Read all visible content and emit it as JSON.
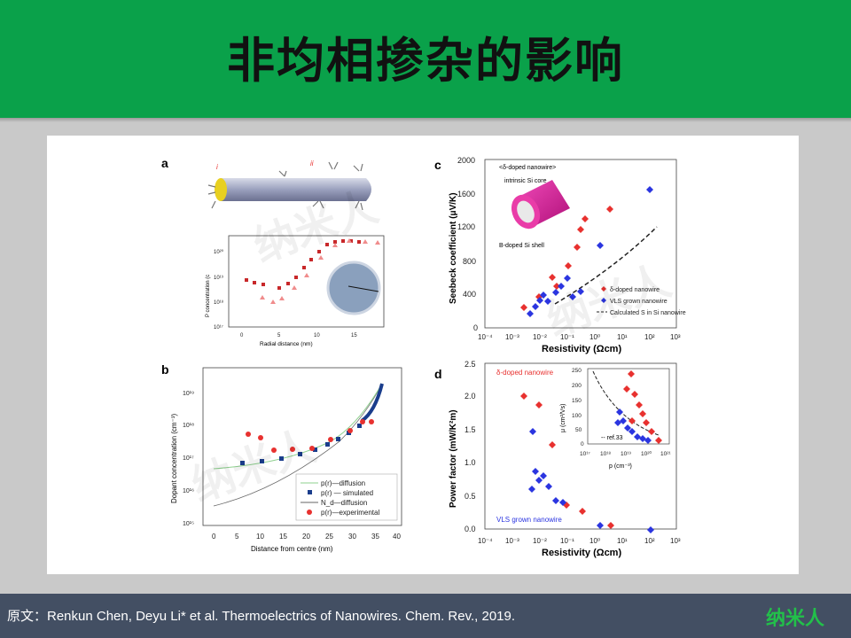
{
  "slide": {
    "title": "非均相掺杂的影响",
    "footer_text": "原文：Renkun Chen, Deyu Li* et al. Thermoelectrics of Nanowires. Chem. Rev., 2019.",
    "footer_logo": "纳米人",
    "watermark": "纳米人"
  },
  "panels": {
    "a": {
      "label": "a",
      "roman_i": "i",
      "roman_ii": "ii",
      "ylabel": "P concentration (c",
      "xlabel": "Radial distance (nm)",
      "xticks": [
        "0",
        "5",
        "10",
        "15"
      ],
      "yticks": [
        "10²⁰",
        "10¹⁹",
        "10¹⁸",
        "10¹⁷"
      ]
    },
    "b": {
      "label": "b",
      "ylabel": "Dopant concentration (cm⁻³)",
      "xlabel": "Distance from centre (nm)",
      "xticks": [
        "0",
        "5",
        "10",
        "15",
        "20",
        "25",
        "30",
        "35",
        "40"
      ],
      "yticks": [
        "10¹⁹",
        "10¹⁸",
        "10¹⁷",
        "10¹⁶",
        "10¹⁵"
      ],
      "legend": [
        "p(r)—diffusion",
        "p(r) — simulated",
        "N_d—diffusion",
        "p(r)—experimental"
      ]
    },
    "c": {
      "label": "c",
      "ylabel": "Seebeck coefficient (μV/K)",
      "xlabel": "Resistivity (Ωcm)",
      "yticks": [
        "2000",
        "1600",
        "1200",
        "800",
        "400",
        "0"
      ],
      "xticks": [
        "10⁻⁴",
        "10⁻³",
        "10⁻²",
        "10⁻¹",
        "10⁰",
        "10¹",
        "10²",
        "10³"
      ],
      "inset_title": "<δ-doped nanowire>",
      "inset_core": "intrinsic Si core",
      "inset_shell": "B-doped Si shell",
      "legend": [
        "δ-doped nanowire",
        "VLS grown nanowire",
        "Calculated S in Si nanowire"
      ]
    },
    "d": {
      "label": "d",
      "ylabel": "Power factor (mW/K²m)",
      "xlabel": "Resistivity (Ωcm)",
      "yticks": [
        "2.5",
        "2.0",
        "1.5",
        "1.0",
        "0.5",
        "0.0"
      ],
      "xticks": [
        "10⁻⁴",
        "10⁻³",
        "10⁻²",
        "10⁻¹",
        "10⁰",
        "10¹",
        "10²",
        "10³"
      ],
      "red_label": "δ-doped nanowire",
      "blue_label": "VLS grown nanowire",
      "inset_ylabel": "μ (cm²/Vs)",
      "inset_xlabel": "p (cm⁻³)",
      "inset_yticks": [
        "250",
        "200",
        "150",
        "100",
        "50",
        "0"
      ],
      "inset_xticks": [
        "10¹⁷",
        "10¹⁸",
        "10¹⁹",
        "10²⁰",
        "10²¹"
      ],
      "inset_ref": "-- ref.33"
    }
  },
  "colors": {
    "header": "#0aa14a",
    "footer": "#434f63",
    "red": "#e8312f",
    "blue": "#2b35e0"
  }
}
